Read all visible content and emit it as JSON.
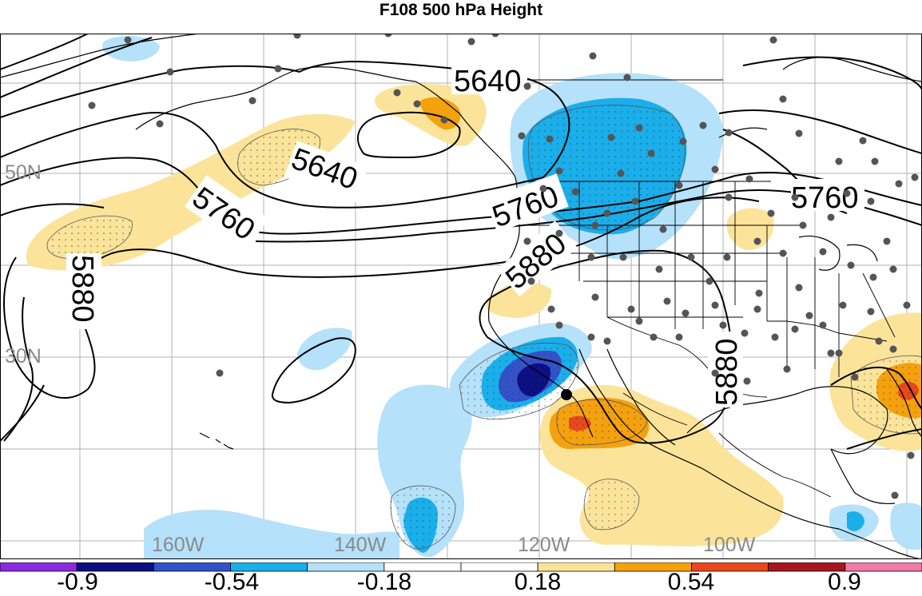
{
  "title": "F108 500 hPa Height",
  "lat_labels": [
    "50N",
    "30N"
  ],
  "lon_labels": [
    "160W",
    "140W",
    "120W",
    "100W"
  ],
  "contour_labels": [
    "5640",
    "5640",
    "5760",
    "5760",
    "5760",
    "5880",
    "5880",
    "5880"
  ],
  "colorbar": {
    "ticks": [
      "-0.9",
      "-0.54",
      "-0.18",
      "0.18",
      "0.54",
      "0.9"
    ],
    "colors": [
      "#8a2be2",
      "#0c0f80",
      "#3452c8",
      "#1aaeea",
      "#b5e1fa",
      "#ffffff",
      "#ffffff",
      "#fbe49a",
      "#f4a10e",
      "#e8481c",
      "#a5161e",
      "#f07aa8"
    ]
  },
  "colors": {
    "positive_light": "#fbe49a",
    "positive_mid": "#f4a10e",
    "positive_strong": "#e8481c",
    "negative_light": "#b5e1fa",
    "negative_mid": "#1aaeea",
    "negative_strong": "#3452c8",
    "negative_max": "#0c0f80",
    "station": "#555555"
  }
}
